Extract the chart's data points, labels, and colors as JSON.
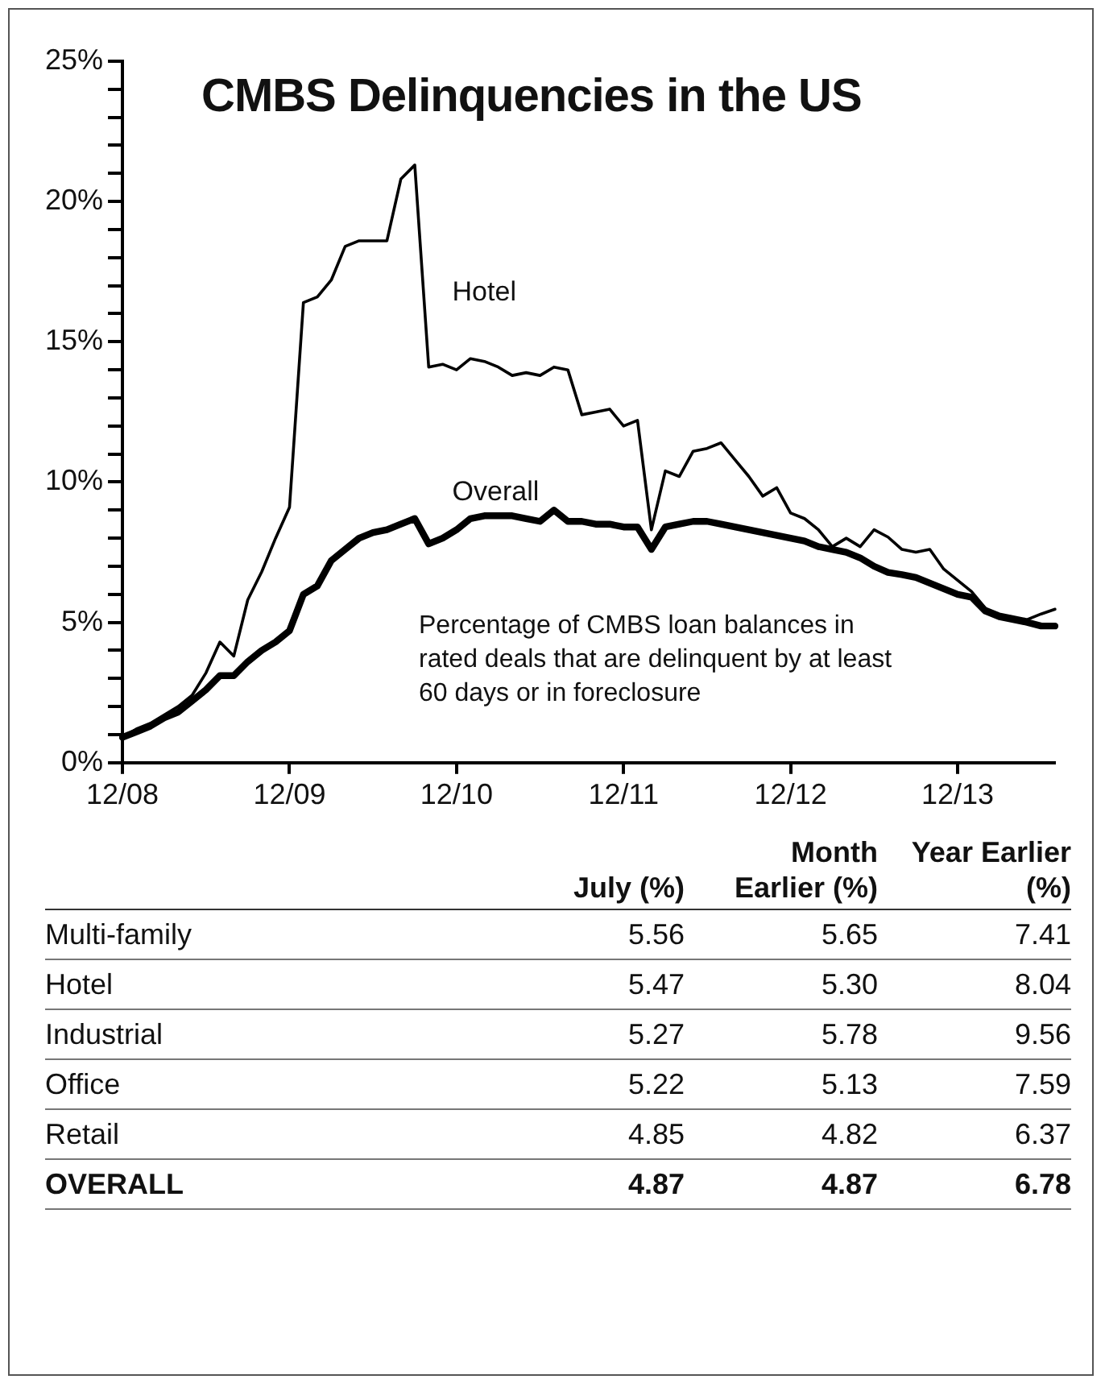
{
  "chart_data": [
    {
      "type": "line",
      "title": "CMBS Delinquencies in the US",
      "categories": [
        "12/08",
        null,
        null,
        null,
        null,
        null,
        null,
        null,
        null,
        null,
        null,
        null,
        "12/09",
        null,
        null,
        null,
        null,
        null,
        null,
        null,
        null,
        null,
        null,
        null,
        "12/10",
        null,
        null,
        null,
        null,
        null,
        null,
        null,
        null,
        null,
        null,
        null,
        "12/11",
        null,
        null,
        null,
        null,
        null,
        null,
        null,
        null,
        null,
        null,
        null,
        "12/12",
        null,
        null,
        null,
        null,
        null,
        null,
        null,
        null,
        null,
        null,
        null,
        "12/13",
        null,
        null,
        null,
        null,
        null,
        null,
        null
      ],
      "series": [
        {
          "name": "Hotel",
          "color": "#000000",
          "values": [
            0.9,
            1.2,
            1.4,
            1.7,
            2.0,
            2.4,
            3.2,
            4.3,
            3.8,
            5.8,
            6.8,
            8.0,
            9.1,
            16.4,
            16.6,
            17.2,
            18.4,
            18.6,
            18.6,
            18.6,
            20.8,
            21.3,
            14.1,
            14.2,
            14.0,
            14.4,
            14.3,
            14.1,
            13.8,
            13.9,
            13.8,
            14.1,
            14.0,
            12.4,
            12.5,
            12.6,
            12.0,
            12.2,
            8.3,
            10.4,
            10.2,
            11.1,
            11.2,
            11.4,
            10.8,
            10.2,
            9.5,
            9.8,
            8.9,
            8.7,
            8.3,
            7.7,
            8.0,
            7.7,
            8.3,
            8.04,
            7.6,
            7.5,
            7.6,
            6.9,
            6.5,
            6.1,
            5.5,
            5.3,
            5.2,
            5.1,
            5.3,
            5.47
          ]
        },
        {
          "name": "Overall",
          "color": "#000000",
          "values": [
            0.9,
            1.1,
            1.3,
            1.6,
            1.8,
            2.2,
            2.6,
            3.1,
            3.1,
            3.6,
            4.0,
            4.3,
            4.7,
            6.0,
            6.3,
            7.2,
            7.6,
            8.0,
            8.2,
            8.3,
            8.5,
            8.7,
            7.8,
            8.0,
            8.3,
            8.7,
            8.8,
            8.8,
            8.8,
            8.7,
            8.6,
            9.0,
            8.6,
            8.6,
            8.5,
            8.5,
            8.4,
            8.4,
            7.6,
            8.4,
            8.5,
            8.6,
            8.6,
            8.5,
            8.4,
            8.3,
            8.2,
            8.1,
            8.0,
            7.9,
            7.7,
            7.6,
            7.5,
            7.3,
            7.0,
            6.78,
            6.7,
            6.6,
            6.4,
            6.2,
            6.0,
            5.9,
            5.4,
            5.2,
            5.1,
            5.0,
            4.87,
            4.87
          ]
        }
      ],
      "ylim": [
        0,
        25
      ],
      "yticks": [
        {
          "value": 0,
          "label": "0%"
        },
        {
          "value": 1,
          "label": null
        },
        {
          "value": 2,
          "label": null
        },
        {
          "value": 3,
          "label": null
        },
        {
          "value": 4,
          "label": null
        },
        {
          "value": 5,
          "label": "5%"
        },
        {
          "value": 6,
          "label": null
        },
        {
          "value": 7,
          "label": null
        },
        {
          "value": 8,
          "label": null
        },
        {
          "value": 9,
          "label": null
        },
        {
          "value": 10,
          "label": "10%"
        },
        {
          "value": 11,
          "label": null
        },
        {
          "value": 12,
          "label": null
        },
        {
          "value": 13,
          "label": null
        },
        {
          "value": 14,
          "label": null
        },
        {
          "value": 15,
          "label": "15%"
        },
        {
          "value": 16,
          "label": null
        },
        {
          "value": 17,
          "label": null
        },
        {
          "value": 18,
          "label": null
        },
        {
          "value": 19,
          "label": null
        },
        {
          "value": 20,
          "label": "20%"
        },
        {
          "value": 21,
          "label": null
        },
        {
          "value": 22,
          "label": null
        },
        {
          "value": 23,
          "label": null
        },
        {
          "value": 24,
          "label": null
        },
        {
          "value": 25,
          "label": "25%"
        }
      ],
      "annotations": [
        "Percentage of CMBS loan balances in rated deals that are delinquent by at least 60 days or in foreclosure"
      ],
      "marker": "none",
      "line_style": "solid",
      "grid": false,
      "legend": false
    },
    {
      "type": "other",
      "categories": [
        "Multi-family",
        "Hotel",
        "Industrial",
        "Office",
        "Retail",
        "OVERALL"
      ],
      "series": [
        {
          "name": "July (%)",
          "values": [
            5.56,
            5.47,
            5.27,
            5.22,
            4.85,
            4.87
          ],
          "value_labels": [
            "5.56",
            "5.47",
            "5.27",
            "5.22",
            "4.85",
            "4.87"
          ]
        },
        {
          "name": "Month Earlier (%)",
          "values": [
            5.65,
            5.3,
            5.78,
            5.13,
            4.82,
            4.87
          ],
          "value_labels": [
            "5.65",
            "5.30",
            "5.78",
            "5.13",
            "4.82",
            "4.87"
          ]
        },
        {
          "name": "Year Earlier (%)",
          "values": [
            7.41,
            8.04,
            9.56,
            7.59,
            6.37,
            6.78
          ],
          "value_labels": [
            "7.41",
            "8.04",
            "9.56",
            "7.59",
            "6.37",
            "6.78"
          ]
        }
      ]
    }
  ]
}
